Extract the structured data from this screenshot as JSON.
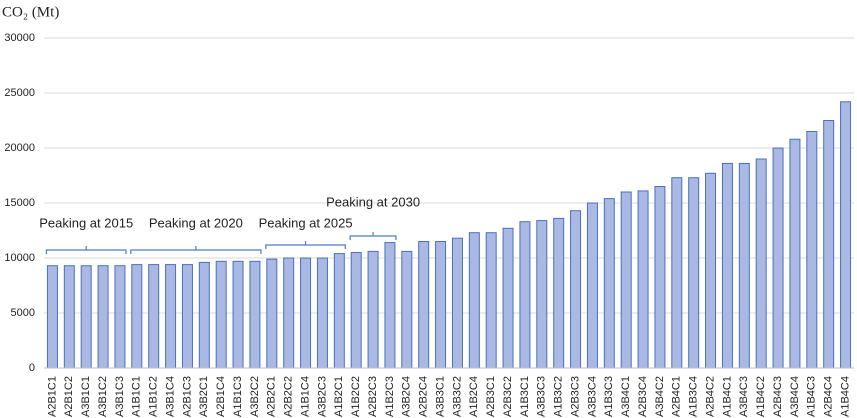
{
  "chart_data": {
    "type": "bar",
    "y_label": "CO₂ (Mt)",
    "categories": [
      "A2B1C1",
      "A2B1C2",
      "A3B1C1",
      "A3B1C2",
      "A3B1C3",
      "A1B1C1",
      "A1B1C2",
      "A3B1C4",
      "A2B1C3",
      "A3B2C1",
      "A2B1C4",
      "A1B1C3",
      "A3B2C2",
      "A2B2C1",
      "A2B2C2",
      "A1B1C4",
      "A3B2C3",
      "A1B2C1",
      "A1B2C2",
      "A2B2C3",
      "A1B2C3",
      "A3B2C4",
      "A2B2C4",
      "A3B3C1",
      "A3B3C2",
      "A1B2C4",
      "A2B3C1",
      "A2B3C2",
      "A1B3C1",
      "A3B3C3",
      "A1B3C2",
      "A2B3C3",
      "A3B3C4",
      "A1B3C3",
      "A3B4C1",
      "A2B3C4",
      "A3B4C2",
      "A2B4C1",
      "A1B3C4",
      "A2B4C2",
      "A1B4C1",
      "A3B4C3",
      "A1B4C2",
      "A2B4C3",
      "A3B4C4",
      "A1B4C3",
      "A2B4C4",
      "A1B4C4"
    ],
    "values": [
      9300,
      9300,
      9300,
      9300,
      9300,
      9400,
      9400,
      9400,
      9400,
      9600,
      9700,
      9700,
      9700,
      9900,
      10000,
      10000,
      10000,
      10400,
      10500,
      10600,
      11400,
      10600,
      11500,
      11500,
      11800,
      12300,
      12300,
      12700,
      13300,
      13400,
      13600,
      14300,
      15000,
      15400,
      16000,
      16100,
      16500,
      17300,
      17300,
      17700,
      18600,
      18600,
      19000,
      20000,
      20800,
      21500,
      22500,
      24200
    ],
    "color": "#a9b9e3",
    "edge_color": "#4a6fbd",
    "ylim": [
      0,
      30000
    ],
    "yticks": [
      0,
      5000,
      10000,
      15000,
      20000,
      25000,
      30000
    ],
    "grid": true,
    "annotations": [
      "Peaking at 2015",
      "Peaking at 2020",
      "Peaking at 2025",
      "Peaking at 2030"
    ]
  }
}
